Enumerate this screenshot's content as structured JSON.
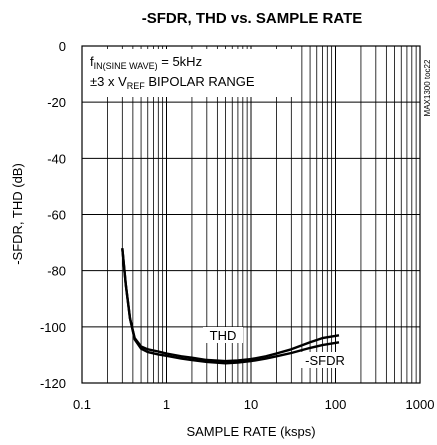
{
  "chart_data": {
    "type": "line",
    "title": "-SFDR, THD vs. SAMPLE RATE",
    "xlabel": "SAMPLE RATE (ksps)",
    "ylabel": "-SFDR, THD (dB)",
    "x_scale": "log",
    "xlim": [
      0.1,
      1000
    ],
    "ylim": [
      -120,
      0
    ],
    "x_ticks": [
      "0.1",
      "1",
      "10",
      "100",
      "1000"
    ],
    "y_ticks": [
      "0",
      "-20",
      "-40",
      "-60",
      "-80",
      "-100",
      "-120"
    ],
    "grid": true,
    "annotations": {
      "line1_main": "f",
      "line1_sub": "IN(SINE WAVE)",
      "line1_rest": " = 5kHz",
      "line2_main": "±3 x V",
      "line2_sub": "REF",
      "line2_rest": " BIPOLAR RANGE"
    },
    "figure_code": "MAX1300 toc22",
    "series": [
      {
        "name": "THD",
        "x": [
          0.3,
          0.33,
          0.37,
          0.42,
          0.5,
          0.6,
          0.8,
          1,
          1.5,
          2,
          3,
          5,
          7,
          10,
          15,
          20,
          30,
          50,
          70,
          110
        ],
        "y": [
          -72,
          -85,
          -97,
          -104,
          -107,
          -108,
          -108.8,
          -109.5,
          -110.5,
          -111,
          -111.8,
          -112.2,
          -112,
          -111.5,
          -110.5,
          -109.5,
          -108,
          -105.5,
          -104,
          -103
        ]
      },
      {
        "name": "-SFDR",
        "x": [
          0.3,
          0.33,
          0.37,
          0.42,
          0.5,
          0.6,
          0.8,
          1,
          1.5,
          2,
          3,
          5,
          7,
          10,
          15,
          20,
          30,
          50,
          70,
          110
        ],
        "y": [
          -72,
          -85,
          -97,
          -104.5,
          -107.8,
          -109,
          -109.8,
          -110.3,
          -111.3,
          -111.8,
          -112.5,
          -113,
          -112.7,
          -112.2,
          -111.3,
          -110.5,
          -109.3,
          -107.5,
          -106.5,
          -105.5
        ]
      }
    ]
  }
}
